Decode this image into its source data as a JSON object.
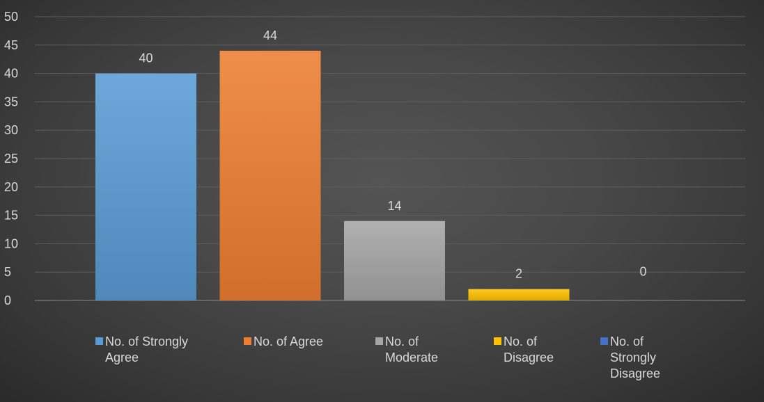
{
  "chart_data": {
    "type": "bar",
    "categories": [
      "No. of Strongly Agree",
      "No. of Agree",
      "No. of Moderate",
      "No. of Disagree",
      "No. of Strongly Disagree"
    ],
    "values": [
      40,
      44,
      14,
      2,
      0
    ],
    "data_labels": [
      "40",
      "44",
      "14",
      "2",
      "0"
    ],
    "ylim": [
      0,
      50
    ],
    "yticks": [
      "0",
      "5",
      "10",
      "15",
      "20",
      "25",
      "30",
      "35",
      "40",
      "45",
      "50"
    ],
    "grid": true,
    "legend_position": "bottom",
    "title": "",
    "xlabel": "",
    "ylabel": "",
    "colors": [
      "#5b9bd5",
      "#ed7d31",
      "#a5a5a5",
      "#ffc000",
      "#4472c4"
    ]
  },
  "legend": [
    {
      "label": "No. of Strongly\nAgree",
      "color": "#5b9bd5"
    },
    {
      "label": "No. of Agree",
      "color": "#ed7d31"
    },
    {
      "label": "No. of\nModerate",
      "color": "#a5a5a5"
    },
    {
      "label": "No. of\nDisagree",
      "color": "#ffc000"
    },
    {
      "label": "No. of\nStrongly\nDisagree",
      "color": "#4472c4"
    }
  ]
}
